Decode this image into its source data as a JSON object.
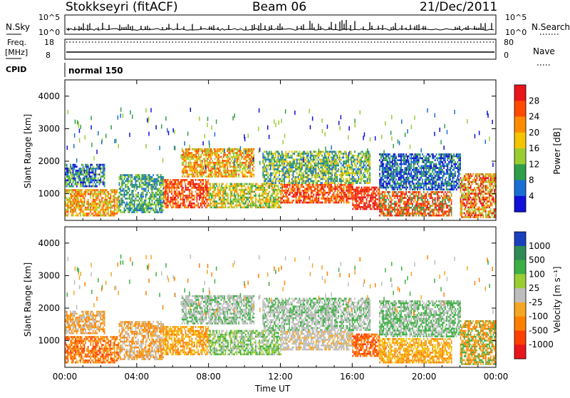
{
  "header": {
    "station": "Stokkseyri (fitACF)",
    "beam": "Beam 06",
    "date": "21/Dec/2011"
  },
  "top_panels": {
    "noise": {
      "left_label": "N.Sky",
      "right_label": "N.Search",
      "left_ticks": [
        "10^5",
        "10^0"
      ],
      "right_ticks": [
        "10^5",
        "10^0"
      ]
    },
    "freq": {
      "left_label_1": "Freq.",
      "left_label_2": "[MHz]",
      "right_label": "Nave",
      "left_ticks": [
        "18",
        "8"
      ],
      "right_ticks": [
        "80",
        "0"
      ]
    },
    "cpid": {
      "label": "CPID",
      "value": "normal 150"
    }
  },
  "chart_data": [
    {
      "type": "heatmap",
      "panel": "power",
      "ylabel": "Slant Range [km]",
      "colorbar_label": "Power [dB]",
      "colorbar_ticks": [
        "28",
        "24",
        "20",
        "16",
        "12",
        "8",
        "4"
      ],
      "colorbar_colors": [
        "#e8151b",
        "#ff4a00",
        "#ff8c00",
        "#f5c400",
        "#9acd32",
        "#2e9e4a",
        "#1a6fd4",
        "#1010d8"
      ],
      "y_ticks": [
        "4000",
        "3000",
        "2000",
        "1000"
      ],
      "ylim": [
        180,
        4500
      ],
      "x_ticks": [
        "00:00",
        "04:00",
        "08:00",
        "12:00",
        "16:00",
        "20:00",
        "00:00"
      ],
      "xlim_hours": [
        0,
        24
      ]
    },
    {
      "type": "heatmap",
      "panel": "velocity",
      "ylabel": "Slant Range [km]",
      "colorbar_label": "Velocity [m s⁻¹]",
      "colorbar_ticks": [
        "1000",
        "500",
        "100",
        "25",
        "-25",
        "-100",
        "-500",
        "-1000"
      ],
      "colorbar_colors": [
        "#1a3fbf",
        "#2e8b57",
        "#3cb043",
        "#9acd32",
        "#bdbdbd",
        "#f5a623",
        "#ff7f00",
        "#ff4000",
        "#e8151b"
      ],
      "y_ticks": [
        "4000",
        "3000",
        "2000",
        "1000"
      ],
      "ylim": [
        180,
        4500
      ],
      "x_ticks": [
        "00:00",
        "04:00",
        "08:00",
        "12:00",
        "16:00",
        "20:00",
        "00:00"
      ],
      "xlim_hours": [
        0,
        24
      ],
      "xlabel": "Time UT"
    }
  ]
}
